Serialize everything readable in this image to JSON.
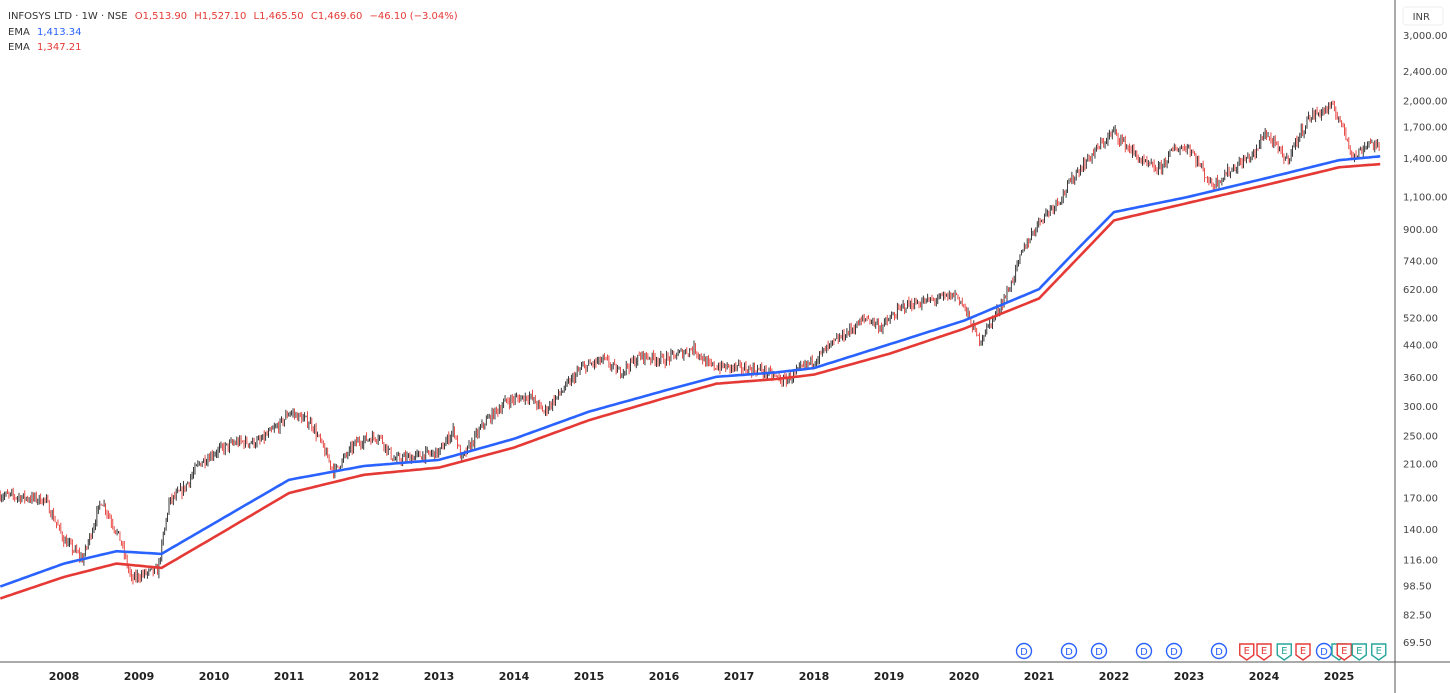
{
  "header": {
    "symbol": "INFOSYS LTD · 1W · NSE",
    "open": "O1,513.90",
    "high": "H1,527.10",
    "low": "L1,465.50",
    "close": "C1,469.60",
    "change": "−46.10 (−3.04%)",
    "ema1_label": "EMA",
    "ema1_value": "1,413.34",
    "ema2_label": "EMA",
    "ema2_value": "1,347.21"
  },
  "chart_data": {
    "type": "candlestick",
    "title": "INFOSYS LTD · 1W · NSE",
    "currency": "INR",
    "yscale": "log",
    "ylim": [
      62,
      3200
    ],
    "yticks": [
      3000,
      2400,
      2000,
      1700,
      1400,
      1100,
      900,
      740,
      620,
      520,
      440,
      360,
      300,
      250,
      210,
      170,
      140,
      116,
      98.5,
      82.5,
      69.5
    ],
    "ytick_labels": [
      "3,000.00",
      "2,400.00",
      "2,000.00",
      "1,700.00",
      "1,400.00",
      "1,100.00",
      "900.00",
      "740.00",
      "620.00",
      "520.00",
      "440.00",
      "360.00",
      "300.00",
      "250.00",
      "210.00",
      "170.00",
      "140.00",
      "116.00",
      "98.50",
      "82.50",
      "69.50"
    ],
    "xlim": [
      2007.15,
      2025.75
    ],
    "xticks": [
      "2008",
      "2009",
      "2010",
      "2011",
      "2012",
      "2013",
      "2014",
      "2015",
      "2016",
      "2017",
      "2018",
      "2019",
      "2020",
      "2021",
      "2022",
      "2023",
      "2024",
      "2025"
    ],
    "price_path": [
      [
        2007.15,
        173
      ],
      [
        2007.5,
        170
      ],
      [
        2007.75,
        168
      ],
      [
        2008.0,
        131
      ],
      [
        2008.25,
        116
      ],
      [
        2008.5,
        168
      ],
      [
        2008.75,
        131
      ],
      [
        2008.9,
        102
      ],
      [
        2009.0,
        105
      ],
      [
        2009.25,
        108
      ],
      [
        2009.4,
        165
      ],
      [
        2009.6,
        180
      ],
      [
        2009.8,
        210
      ],
      [
        2010.0,
        225
      ],
      [
        2010.3,
        240
      ],
      [
        2010.6,
        240
      ],
      [
        2010.9,
        270
      ],
      [
        2011.0,
        290
      ],
      [
        2011.3,
        270
      ],
      [
        2011.6,
        200
      ],
      [
        2011.9,
        240
      ],
      [
        2012.2,
        250
      ],
      [
        2012.4,
        215
      ],
      [
        2012.7,
        220
      ],
      [
        2013.0,
        225
      ],
      [
        2013.2,
        260
      ],
      [
        2013.3,
        215
      ],
      [
        2013.6,
        270
      ],
      [
        2013.9,
        310
      ],
      [
        2014.2,
        320
      ],
      [
        2014.4,
        290
      ],
      [
        2014.7,
        340
      ],
      [
        2014.9,
        380
      ],
      [
        2015.2,
        400
      ],
      [
        2015.4,
        370
      ],
      [
        2015.7,
        410
      ],
      [
        2016.0,
        400
      ],
      [
        2016.4,
        430
      ],
      [
        2016.6,
        385
      ],
      [
        2017.0,
        380
      ],
      [
        2017.3,
        375
      ],
      [
        2017.6,
        350
      ],
      [
        2018.0,
        400
      ],
      [
        2018.3,
        450
      ],
      [
        2018.7,
        520
      ],
      [
        2018.9,
        490
      ],
      [
        2019.2,
        560
      ],
      [
        2019.6,
        580
      ],
      [
        2019.9,
        600
      ],
      [
        2020.0,
        555
      ],
      [
        2020.2,
        450
      ],
      [
        2020.4,
        520
      ],
      [
        2020.6,
        620
      ],
      [
        2020.8,
        800
      ],
      [
        2021.0,
        945
      ],
      [
        2021.3,
        1100
      ],
      [
        2021.5,
        1280
      ],
      [
        2021.8,
        1500
      ],
      [
        2022.0,
        1650
      ],
      [
        2022.1,
        1560
      ],
      [
        2022.4,
        1350
      ],
      [
        2022.6,
        1300
      ],
      [
        2022.8,
        1480
      ],
      [
        2023.0,
        1500
      ],
      [
        2023.3,
        1180
      ],
      [
        2023.6,
        1320
      ],
      [
        2023.9,
        1450
      ],
      [
        2024.0,
        1650
      ],
      [
        2024.3,
        1380
      ],
      [
        2024.6,
        1800
      ],
      [
        2024.9,
        1920
      ],
      [
        2025.0,
        1800
      ],
      [
        2025.2,
        1400
      ],
      [
        2025.4,
        1550
      ],
      [
        2025.55,
        1469.6
      ]
    ],
    "series": [
      {
        "name": "EMA",
        "color": "#2962ff",
        "points": [
          [
            2007.15,
            98
          ],
          [
            2008.0,
            113
          ],
          [
            2008.7,
            122
          ],
          [
            2009.3,
            120
          ],
          [
            2010.0,
            145
          ],
          [
            2011.0,
            190
          ],
          [
            2012.0,
            207
          ],
          [
            2013.0,
            215
          ],
          [
            2014.0,
            245
          ],
          [
            2015.0,
            290
          ],
          [
            2016.0,
            330
          ],
          [
            2016.7,
            360
          ],
          [
            2017.5,
            370
          ],
          [
            2018.0,
            380
          ],
          [
            2019.0,
            440
          ],
          [
            2020.0,
            510
          ],
          [
            2021.0,
            620
          ],
          [
            2021.5,
            790
          ],
          [
            2022.0,
            1000
          ],
          [
            2023.0,
            1100
          ],
          [
            2024.0,
            1230
          ],
          [
            2025.0,
            1380
          ],
          [
            2025.55,
            1413.34
          ]
        ]
      },
      {
        "name": "EMA",
        "color": "#e53935",
        "points": [
          [
            2007.15,
            91
          ],
          [
            2008.0,
            104
          ],
          [
            2008.7,
            113
          ],
          [
            2009.3,
            110
          ],
          [
            2010.0,
            133
          ],
          [
            2011.0,
            175
          ],
          [
            2012.0,
            196
          ],
          [
            2013.0,
            205
          ],
          [
            2014.0,
            232
          ],
          [
            2015.0,
            275
          ],
          [
            2016.0,
            315
          ],
          [
            2016.7,
            345
          ],
          [
            2017.5,
            355
          ],
          [
            2018.0,
            365
          ],
          [
            2019.0,
            415
          ],
          [
            2020.0,
            485
          ],
          [
            2021.0,
            585
          ],
          [
            2021.5,
            745
          ],
          [
            2022.0,
            950
          ],
          [
            2023.0,
            1060
          ],
          [
            2024.0,
            1180
          ],
          [
            2025.0,
            1320
          ],
          [
            2025.55,
            1347.21
          ]
        ]
      }
    ],
    "events": [
      {
        "type": "D",
        "t": 2020.8
      },
      {
        "type": "D",
        "t": 2021.4
      },
      {
        "type": "D",
        "t": 2021.8
      },
      {
        "type": "D",
        "t": 2022.4
      },
      {
        "type": "D",
        "t": 2022.8
      },
      {
        "type": "D",
        "t": 2023.4
      },
      {
        "type": "E",
        "t": 2023.77,
        "color": "#e53935"
      },
      {
        "type": "E",
        "t": 2024.0,
        "color": "#e53935"
      },
      {
        "type": "E",
        "t": 2024.27,
        "color": "#26a69a"
      },
      {
        "type": "E",
        "t": 2024.52,
        "color": "#e53935"
      },
      {
        "type": "D",
        "t": 2024.8
      },
      {
        "type": "E",
        "t": 2025.0,
        "color": "#26a69a"
      },
      {
        "type": "E",
        "t": 2025.07,
        "color": "#e53935"
      },
      {
        "type": "E",
        "t": 2025.27,
        "color": "#26a69a"
      },
      {
        "type": "E",
        "t": 2025.53,
        "color": "#26a69a"
      }
    ]
  }
}
